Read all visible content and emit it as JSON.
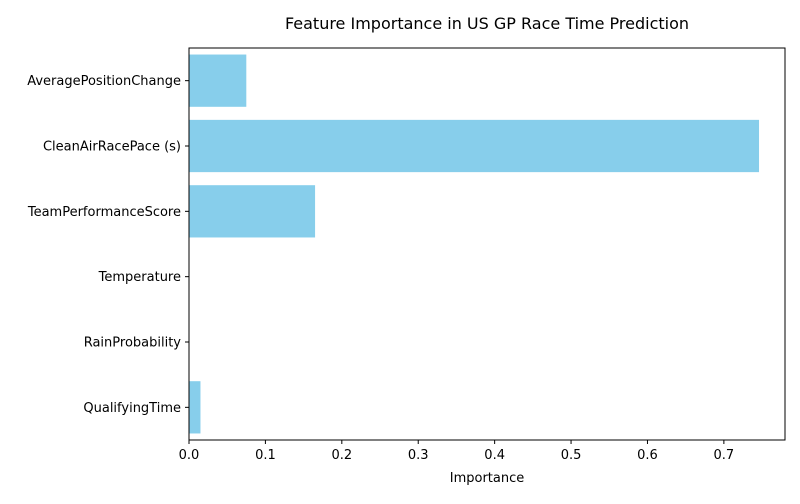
{
  "chart_data": {
    "type": "bar",
    "orientation": "horizontal",
    "title": "Feature Importance in US GP Race Time Prediction",
    "xlabel": "Importance",
    "ylabel": "",
    "categories": [
      "AveragePositionChange",
      "CleanAirRacePace (s)",
      "TeamPerformanceScore",
      "Temperature",
      "RainProbability",
      "QualifyingTime"
    ],
    "values": [
      0.075,
      0.746,
      0.165,
      0.0,
      0.0,
      0.015
    ],
    "xlim": [
      0,
      0.78
    ],
    "xticks": [
      "0.0",
      "0.1",
      "0.2",
      "0.3",
      "0.4",
      "0.5",
      "0.6",
      "0.7"
    ],
    "grid": false,
    "bar_color": "#87ceeb"
  }
}
